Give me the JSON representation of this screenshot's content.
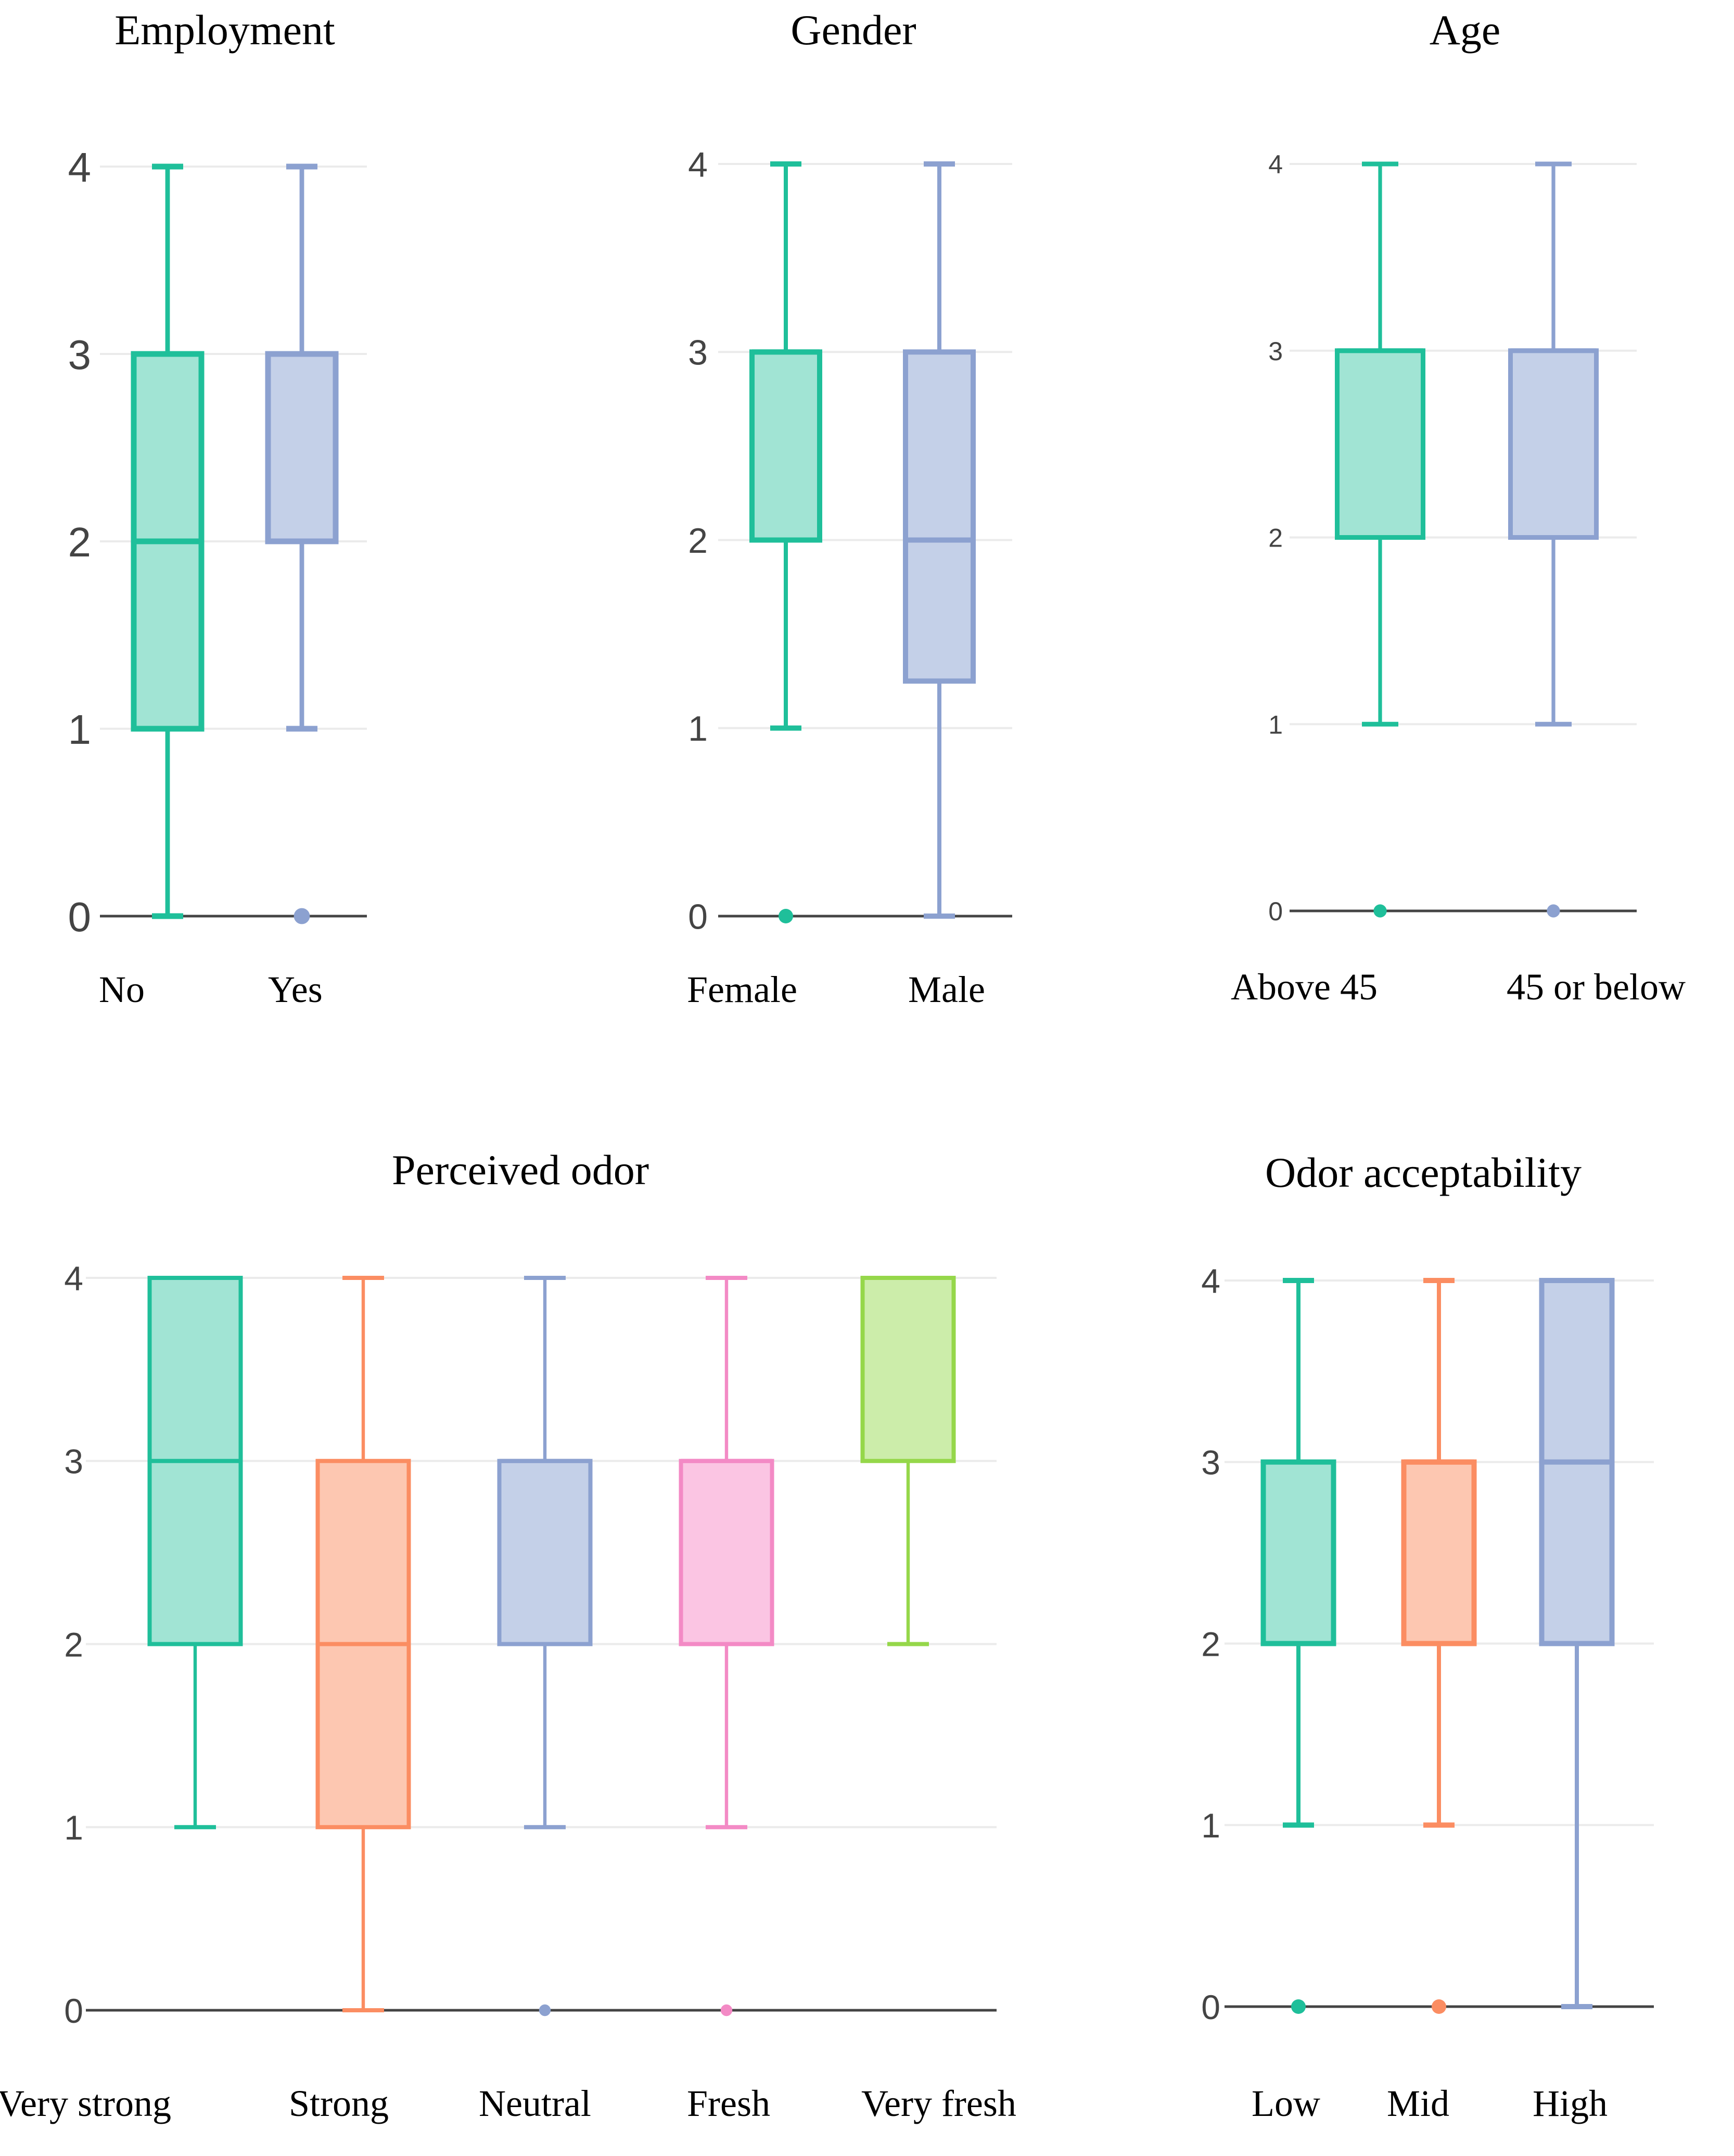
{
  "chart_data": [
    {
      "type": "box",
      "title": "Employment",
      "ylim": [
        0,
        4
      ],
      "yticks": [
        0,
        1,
        2,
        3,
        4
      ],
      "grid": true,
      "legend": "none",
      "categories": [
        "No",
        "Yes"
      ],
      "boxes": [
        {
          "label": "No",
          "color": "#1fbf9a",
          "fill": "#a1e4d4",
          "min": 0,
          "q1": 1,
          "median": 2,
          "q3": 3,
          "max": 4,
          "outliers": []
        },
        {
          "label": "Yes",
          "color": "#8ca1d0",
          "fill": "#c4d0e8",
          "min": 1,
          "q1": 2,
          "median": 3,
          "q3": 3,
          "max": 4,
          "outliers": [
            0
          ]
        }
      ]
    },
    {
      "type": "box",
      "title": "Gender",
      "ylim": [
        0,
        4
      ],
      "yticks": [
        0,
        1,
        2,
        3,
        4
      ],
      "grid": true,
      "legend": "none",
      "categories": [
        "Female",
        "Male"
      ],
      "boxes": [
        {
          "label": "Female",
          "color": "#1fbf9a",
          "fill": "#a1e4d4",
          "min": 1,
          "q1": 2,
          "median": 3,
          "q3": 3,
          "max": 4,
          "outliers": [
            0
          ]
        },
        {
          "label": "Male",
          "color": "#8ca1d0",
          "fill": "#c4d0e8",
          "min": 0,
          "q1": 1.25,
          "median": 2,
          "q3": 3,
          "max": 4,
          "outliers": []
        }
      ]
    },
    {
      "type": "box",
      "title": "Age",
      "ylim": [
        0,
        4
      ],
      "yticks": [
        0,
        1,
        2,
        3,
        4
      ],
      "grid": true,
      "legend": "none",
      "categories": [
        "Above 45",
        "45 or below"
      ],
      "boxes": [
        {
          "label": "Above 45",
          "color": "#1fbf9a",
          "fill": "#a1e4d4",
          "min": 1,
          "q1": 2,
          "median": 3,
          "q3": 3,
          "max": 4,
          "outliers": [
            0
          ]
        },
        {
          "label": "45 or below",
          "color": "#8ca1d0",
          "fill": "#c4d0e8",
          "min": 1,
          "q1": 2,
          "median": 3,
          "q3": 3,
          "max": 4,
          "outliers": [
            0
          ]
        }
      ]
    },
    {
      "type": "box",
      "title": "Perceived odor",
      "ylim": [
        0,
        4
      ],
      "yticks": [
        0,
        1,
        2,
        3,
        4
      ],
      "grid": true,
      "legend": "none",
      "categories": [
        "Very strong",
        "Strong",
        "Neutral",
        "Fresh",
        "Very fresh"
      ],
      "boxes": [
        {
          "label": "Very strong",
          "color": "#1fbf9a",
          "fill": "#a1e4d4",
          "min": 1,
          "q1": 2,
          "median": 3,
          "q3": 4,
          "max": 4,
          "outliers": []
        },
        {
          "label": "Strong",
          "color": "#fb8d62",
          "fill": "#fdc7b1",
          "min": 0,
          "q1": 1,
          "median": 2,
          "q3": 3,
          "max": 4,
          "outliers": []
        },
        {
          "label": "Neutral",
          "color": "#8ca1d0",
          "fill": "#c4d0e8",
          "min": 1,
          "q1": 2,
          "median": 3,
          "q3": 3,
          "max": 4,
          "outliers": [
            0
          ]
        },
        {
          "label": "Fresh",
          "color": "#f38ac5",
          "fill": "#fbc5e3",
          "min": 1,
          "q1": 2,
          "median": 3,
          "q3": 3,
          "max": 4,
          "outliers": [
            0
          ]
        },
        {
          "label": "Very fresh",
          "color": "#95d74a",
          "fill": "#ccedaa",
          "min": 2,
          "q1": 3,
          "median": 4,
          "q3": 4,
          "max": 4,
          "outliers": []
        }
      ]
    },
    {
      "type": "box",
      "title": "Odor acceptability",
      "ylim": [
        0,
        4
      ],
      "yticks": [
        0,
        1,
        2,
        3,
        4
      ],
      "grid": true,
      "legend": "none",
      "categories": [
        "Low",
        "Mid",
        "High"
      ],
      "boxes": [
        {
          "label": "Low",
          "color": "#1fbf9a",
          "fill": "#a1e4d4",
          "min": 1,
          "q1": 2,
          "median": 2,
          "q3": 3,
          "max": 4,
          "outliers": [
            0
          ]
        },
        {
          "label": "Mid",
          "color": "#fb8d62",
          "fill": "#fdc7b1",
          "min": 1,
          "q1": 2,
          "median": 3,
          "q3": 3,
          "max": 4,
          "outliers": [
            0
          ]
        },
        {
          "label": "High",
          "color": "#8ca1d0",
          "fill": "#c4d0e8",
          "min": 0,
          "q1": 2,
          "median": 3,
          "q3": 4,
          "max": 4,
          "outliers": []
        }
      ]
    }
  ]
}
